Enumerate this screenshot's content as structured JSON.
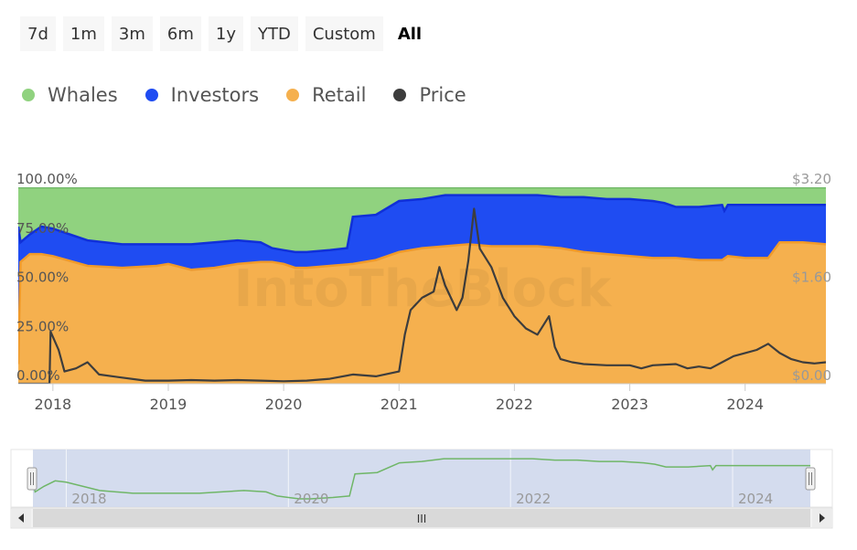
{
  "range_selector": {
    "buttons": [
      {
        "label": "7d",
        "active": false
      },
      {
        "label": "1m",
        "active": false
      },
      {
        "label": "3m",
        "active": false
      },
      {
        "label": "6m",
        "active": false
      },
      {
        "label": "1y",
        "active": false
      },
      {
        "label": "YTD",
        "active": false
      },
      {
        "label": "Custom",
        "active": false
      },
      {
        "label": "All",
        "active": true
      }
    ]
  },
  "legend": [
    {
      "label": "Whales",
      "color": "#90d27f"
    },
    {
      "label": "Investors",
      "color": "#1f4cf2"
    },
    {
      "label": "Retail",
      "color": "#f5b04e"
    },
    {
      "label": "Price",
      "color": "#3d3d3d"
    }
  ],
  "watermark": "IntoTheBlock",
  "chart_data": {
    "type": "area",
    "stacked": true,
    "title": "",
    "x_labels": [
      "2018",
      "2019",
      "2020",
      "2021",
      "2022",
      "2023",
      "2024"
    ],
    "y_left_labels": [
      "100.00%",
      "75.00%",
      "50.00%",
      "25.00%",
      "0.00%"
    ],
    "y_left_range": [
      0,
      100
    ],
    "y_right_labels": [
      "$3.20",
      "$1.60",
      "$0.00"
    ],
    "y_right_range": [
      0,
      3.2
    ],
    "x_range": [
      2017.7,
      2024.7
    ],
    "series": [
      {
        "name": "Retail",
        "color": "#f5b04e",
        "points": [
          [
            2017.7,
            10
          ],
          [
            2017.72,
            62
          ],
          [
            2017.8,
            66
          ],
          [
            2017.9,
            66
          ],
          [
            2018.0,
            65
          ],
          [
            2018.3,
            60
          ],
          [
            2018.6,
            59
          ],
          [
            2018.9,
            60
          ],
          [
            2019.0,
            61
          ],
          [
            2019.2,
            58
          ],
          [
            2019.4,
            59
          ],
          [
            2019.6,
            61
          ],
          [
            2019.8,
            62
          ],
          [
            2019.9,
            62
          ],
          [
            2020.0,
            61
          ],
          [
            2020.1,
            59
          ],
          [
            2020.2,
            59
          ],
          [
            2020.4,
            60
          ],
          [
            2020.6,
            61
          ],
          [
            2020.8,
            63
          ],
          [
            2021.0,
            67
          ],
          [
            2021.2,
            69
          ],
          [
            2021.4,
            70
          ],
          [
            2021.6,
            71
          ],
          [
            2021.8,
            70
          ],
          [
            2022.0,
            70
          ],
          [
            2022.2,
            70
          ],
          [
            2022.4,
            69
          ],
          [
            2022.6,
            67
          ],
          [
            2022.8,
            66
          ],
          [
            2023.0,
            65
          ],
          [
            2023.2,
            64
          ],
          [
            2023.4,
            64
          ],
          [
            2023.6,
            63
          ],
          [
            2023.8,
            63
          ],
          [
            2023.85,
            65
          ],
          [
            2024.0,
            64
          ],
          [
            2024.2,
            64
          ],
          [
            2024.3,
            72
          ],
          [
            2024.5,
            72
          ],
          [
            2024.7,
            71
          ]
        ]
      },
      {
        "name": "Investors",
        "color": "#1f4cf2",
        "points": [
          [
            2017.7,
            80
          ],
          [
            2017.72,
            72
          ],
          [
            2017.8,
            76
          ],
          [
            2017.9,
            80
          ],
          [
            2018.0,
            79
          ],
          [
            2018.3,
            73
          ],
          [
            2018.6,
            71
          ],
          [
            2018.9,
            71
          ],
          [
            2019.0,
            71
          ],
          [
            2019.2,
            71
          ],
          [
            2019.4,
            72
          ],
          [
            2019.6,
            73
          ],
          [
            2019.8,
            72
          ],
          [
            2019.9,
            69
          ],
          [
            2020.0,
            68
          ],
          [
            2020.1,
            67
          ],
          [
            2020.2,
            67
          ],
          [
            2020.4,
            68
          ],
          [
            2020.55,
            69
          ],
          [
            2020.6,
            85
          ],
          [
            2020.8,
            86
          ],
          [
            2021.0,
            93
          ],
          [
            2021.2,
            94
          ],
          [
            2021.4,
            96
          ],
          [
            2021.6,
            96
          ],
          [
            2021.8,
            96
          ],
          [
            2022.0,
            96
          ],
          [
            2022.2,
            96
          ],
          [
            2022.4,
            95
          ],
          [
            2022.6,
            95
          ],
          [
            2022.8,
            94
          ],
          [
            2023.0,
            94
          ],
          [
            2023.2,
            93
          ],
          [
            2023.3,
            92
          ],
          [
            2023.4,
            90
          ],
          [
            2023.6,
            90
          ],
          [
            2023.8,
            91
          ],
          [
            2023.82,
            88
          ],
          [
            2023.85,
            91
          ],
          [
            2024.0,
            91
          ],
          [
            2024.2,
            91
          ],
          [
            2024.4,
            91
          ],
          [
            2024.7,
            91
          ]
        ]
      },
      {
        "name": "Whales",
        "color": "#90d27f",
        "points": [
          [
            2017.7,
            100
          ],
          [
            2024.7,
            100
          ]
        ]
      }
    ],
    "price": {
      "name": "Price",
      "color": "#3d3d3d",
      "points": [
        [
          2017.7,
          0.0
        ],
        [
          2017.97,
          0.0
        ],
        [
          2017.98,
          0.85
        ],
        [
          2018.05,
          0.55
        ],
        [
          2018.1,
          0.2
        ],
        [
          2018.2,
          0.25
        ],
        [
          2018.3,
          0.35
        ],
        [
          2018.4,
          0.15
        ],
        [
          2018.6,
          0.1
        ],
        [
          2018.8,
          0.05
        ],
        [
          2019.0,
          0.05
        ],
        [
          2019.2,
          0.06
        ],
        [
          2019.4,
          0.05
        ],
        [
          2019.6,
          0.06
        ],
        [
          2019.8,
          0.05
        ],
        [
          2020.0,
          0.04
        ],
        [
          2020.2,
          0.05
        ],
        [
          2020.4,
          0.08
        ],
        [
          2020.6,
          0.15
        ],
        [
          2020.8,
          0.12
        ],
        [
          2021.0,
          0.2
        ],
        [
          2021.05,
          0.8
        ],
        [
          2021.1,
          1.2
        ],
        [
          2021.2,
          1.4
        ],
        [
          2021.3,
          1.5
        ],
        [
          2021.35,
          1.9
        ],
        [
          2021.4,
          1.6
        ],
        [
          2021.5,
          1.2
        ],
        [
          2021.55,
          1.4
        ],
        [
          2021.6,
          2.0
        ],
        [
          2021.65,
          2.85
        ],
        [
          2021.7,
          2.2
        ],
        [
          2021.8,
          1.9
        ],
        [
          2021.9,
          1.4
        ],
        [
          2022.0,
          1.1
        ],
        [
          2022.1,
          0.9
        ],
        [
          2022.2,
          0.8
        ],
        [
          2022.3,
          1.1
        ],
        [
          2022.35,
          0.6
        ],
        [
          2022.4,
          0.4
        ],
        [
          2022.5,
          0.35
        ],
        [
          2022.6,
          0.32
        ],
        [
          2022.8,
          0.3
        ],
        [
          2023.0,
          0.3
        ],
        [
          2023.1,
          0.25
        ],
        [
          2023.2,
          0.3
        ],
        [
          2023.4,
          0.32
        ],
        [
          2023.5,
          0.25
        ],
        [
          2023.6,
          0.28
        ],
        [
          2023.7,
          0.25
        ],
        [
          2023.8,
          0.35
        ],
        [
          2023.9,
          0.45
        ],
        [
          2024.0,
          0.5
        ],
        [
          2024.1,
          0.55
        ],
        [
          2024.2,
          0.65
        ],
        [
          2024.3,
          0.5
        ],
        [
          2024.4,
          0.4
        ],
        [
          2024.5,
          0.35
        ],
        [
          2024.6,
          0.33
        ],
        [
          2024.7,
          0.35
        ]
      ]
    }
  },
  "navigator": {
    "x_labels": [
      "2018",
      "2020",
      "2022",
      "2024"
    ],
    "scroll_grip": "III"
  }
}
